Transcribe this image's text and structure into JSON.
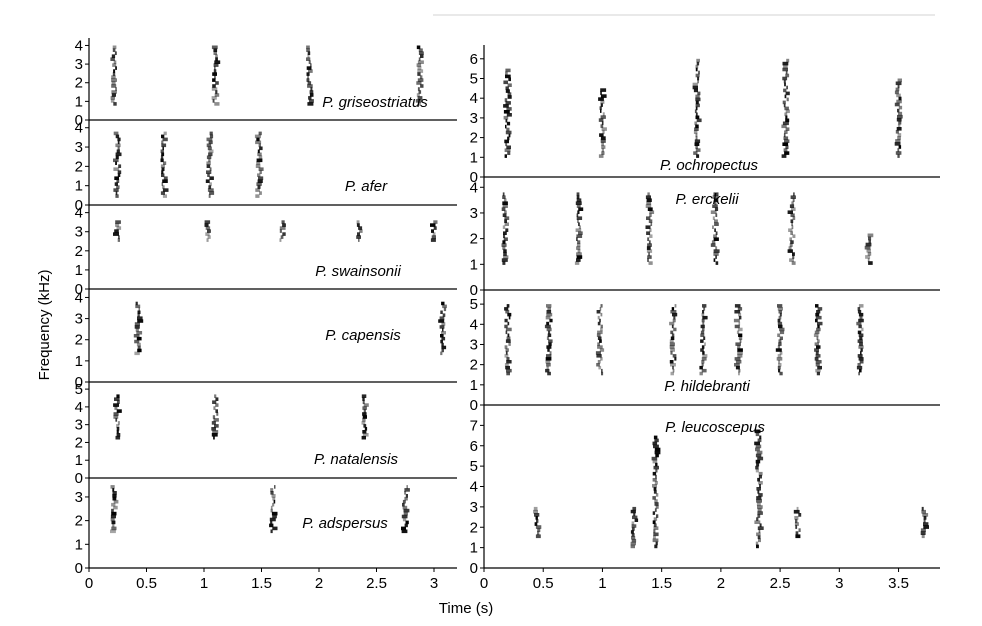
{
  "figure": {
    "ylabel": "Frequency (kHz)",
    "xlabel": "Time (s)"
  },
  "chart_data": [
    {
      "type": "heatmap",
      "panel": "left-1",
      "title": "P. griseostriatus",
      "x_range": [
        0,
        3.2
      ],
      "y_range": [
        0,
        4.4
      ],
      "y_ticks": [
        0,
        1,
        2,
        3,
        4
      ],
      "calls": [
        {
          "t": 0.22,
          "f_min": 0.8,
          "f_max": 4.0
        },
        {
          "t": 1.1,
          "f_min": 0.8,
          "f_max": 4.0
        },
        {
          "t": 1.92,
          "f_min": 0.8,
          "f_max": 4.0
        },
        {
          "t": 2.88,
          "f_min": 0.8,
          "f_max": 4.0
        }
      ]
    },
    {
      "type": "heatmap",
      "panel": "left-2",
      "title": "P. afer",
      "x_range": [
        0,
        3.2
      ],
      "y_range": [
        0,
        4.4
      ],
      "y_ticks": [
        0,
        1,
        2,
        3,
        4
      ],
      "calls": [
        {
          "t": 0.25,
          "f_min": 0.4,
          "f_max": 3.8
        },
        {
          "t": 0.65,
          "f_min": 0.4,
          "f_max": 3.8
        },
        {
          "t": 1.05,
          "f_min": 0.4,
          "f_max": 3.8
        },
        {
          "t": 1.48,
          "f_min": 0.4,
          "f_max": 3.8
        }
      ]
    },
    {
      "type": "heatmap",
      "panel": "left-3",
      "title": "P. swainsonii",
      "x_range": [
        0,
        3.2
      ],
      "y_range": [
        0,
        4.4
      ],
      "y_ticks": [
        0,
        1,
        2,
        3,
        4
      ],
      "calls": [
        {
          "t": 0.25,
          "f_min": 2.5,
          "f_max": 3.6
        },
        {
          "t": 1.03,
          "f_min": 2.5,
          "f_max": 3.6
        },
        {
          "t": 1.68,
          "f_min": 2.5,
          "f_max": 3.6
        },
        {
          "t": 2.35,
          "f_min": 2.5,
          "f_max": 3.6
        },
        {
          "t": 3.0,
          "f_min": 2.5,
          "f_max": 3.6
        }
      ]
    },
    {
      "type": "heatmap",
      "panel": "left-4",
      "title": "P. capensis",
      "x_range": [
        0,
        3.2
      ],
      "y_range": [
        0,
        4.4
      ],
      "y_ticks": [
        0,
        1,
        2,
        3,
        4
      ],
      "calls": [
        {
          "t": 0.43,
          "f_min": 1.3,
          "f_max": 3.8
        },
        {
          "t": 3.08,
          "f_min": 1.3,
          "f_max": 3.8
        }
      ]
    },
    {
      "type": "heatmap",
      "panel": "left-5",
      "title": "P. natalensis",
      "x_range": [
        0,
        3.2
      ],
      "y_range": [
        0,
        5.4
      ],
      "y_ticks": [
        0,
        1,
        2,
        3,
        4,
        5
      ],
      "calls": [
        {
          "t": 0.25,
          "f_min": 2.2,
          "f_max": 4.7
        },
        {
          "t": 1.1,
          "f_min": 2.2,
          "f_max": 4.7
        },
        {
          "t": 2.4,
          "f_min": 2.2,
          "f_max": 4.7
        }
      ]
    },
    {
      "type": "heatmap",
      "panel": "left-6",
      "title": "P. adspersus",
      "x_range": [
        0,
        3.2
      ],
      "y_range": [
        0,
        3.8
      ],
      "y_ticks": [
        0,
        1,
        2,
        3
      ],
      "x_ticks": [
        0,
        0.5,
        1.0,
        1.5,
        2.0,
        2.5,
        3.0
      ],
      "calls": [
        {
          "t": 0.22,
          "f_min": 1.5,
          "f_max": 3.5
        },
        {
          "t": 1.6,
          "f_min": 1.5,
          "f_max": 3.5
        },
        {
          "t": 2.75,
          "f_min": 1.5,
          "f_max": 3.5
        }
      ]
    },
    {
      "type": "heatmap",
      "panel": "right-1",
      "title": "P. ochropectus",
      "x_range": [
        0,
        3.85
      ],
      "y_range": [
        0,
        6.7
      ],
      "y_ticks": [
        0,
        1,
        2,
        3,
        4,
        5,
        6
      ],
      "calls": [
        {
          "t": 0.2,
          "f_min": 1.0,
          "f_max": 5.5
        },
        {
          "t": 1.0,
          "f_min": 1.0,
          "f_max": 4.5
        },
        {
          "t": 1.8,
          "f_min": 1.0,
          "f_max": 6.0
        },
        {
          "t": 2.55,
          "f_min": 1.0,
          "f_max": 6.0
        },
        {
          "t": 3.5,
          "f_min": 1.0,
          "f_max": 5.0
        }
      ]
    },
    {
      "type": "heatmap",
      "panel": "right-2",
      "title": "P. erckelii",
      "x_range": [
        0,
        3.85
      ],
      "y_range": [
        0,
        4.4
      ],
      "y_ticks": [
        0,
        1,
        2,
        3,
        4
      ],
      "calls": [
        {
          "t": 0.18,
          "f_min": 1.0,
          "f_max": 3.8
        },
        {
          "t": 0.8,
          "f_min": 1.0,
          "f_max": 3.8
        },
        {
          "t": 1.4,
          "f_min": 1.0,
          "f_max": 3.8
        },
        {
          "t": 1.95,
          "f_min": 1.0,
          "f_max": 3.8
        },
        {
          "t": 2.6,
          "f_min": 1.0,
          "f_max": 3.8
        },
        {
          "t": 3.25,
          "f_min": 1.0,
          "f_max": 2.2
        }
      ]
    },
    {
      "type": "heatmap",
      "panel": "right-3",
      "title": "P. hildebranti",
      "x_range": [
        0,
        3.85
      ],
      "y_range": [
        0,
        5.7
      ],
      "y_ticks": [
        0,
        1,
        2,
        3,
        4,
        5
      ],
      "calls": [
        {
          "t": 0.2,
          "f_min": 1.5,
          "f_max": 5.0
        },
        {
          "t": 0.55,
          "f_min": 1.5,
          "f_max": 5.0
        },
        {
          "t": 0.98,
          "f_min": 1.5,
          "f_max": 5.0
        },
        {
          "t": 1.6,
          "f_min": 1.5,
          "f_max": 5.0
        },
        {
          "t": 1.85,
          "f_min": 1.5,
          "f_max": 5.0
        },
        {
          "t": 2.15,
          "f_min": 1.5,
          "f_max": 5.0
        },
        {
          "t": 2.5,
          "f_min": 1.5,
          "f_max": 5.0
        },
        {
          "t": 2.82,
          "f_min": 1.5,
          "f_max": 5.0
        },
        {
          "t": 3.18,
          "f_min": 1.5,
          "f_max": 5.0
        }
      ]
    },
    {
      "type": "heatmap",
      "panel": "right-4",
      "title": "P. leucoscepus",
      "x_range": [
        0,
        3.85
      ],
      "y_range": [
        0,
        8.0
      ],
      "y_ticks": [
        0,
        1,
        2,
        3,
        4,
        5,
        6,
        7
      ],
      "x_ticks": [
        0,
        0.5,
        1.0,
        1.5,
        2.0,
        2.5,
        3.0,
        3.5
      ],
      "calls": [
        {
          "t": 0.45,
          "f_min": 1.5,
          "f_max": 3.0
        },
        {
          "t": 1.27,
          "f_min": 1.0,
          "f_max": 3.0
        },
        {
          "t": 1.45,
          "f_min": 1.0,
          "f_max": 6.5
        },
        {
          "t": 2.32,
          "f_min": 1.0,
          "f_max": 6.8
        },
        {
          "t": 2.65,
          "f_min": 1.5,
          "f_max": 3.0
        },
        {
          "t": 3.72,
          "f_min": 1.5,
          "f_max": 3.0
        }
      ]
    }
  ]
}
